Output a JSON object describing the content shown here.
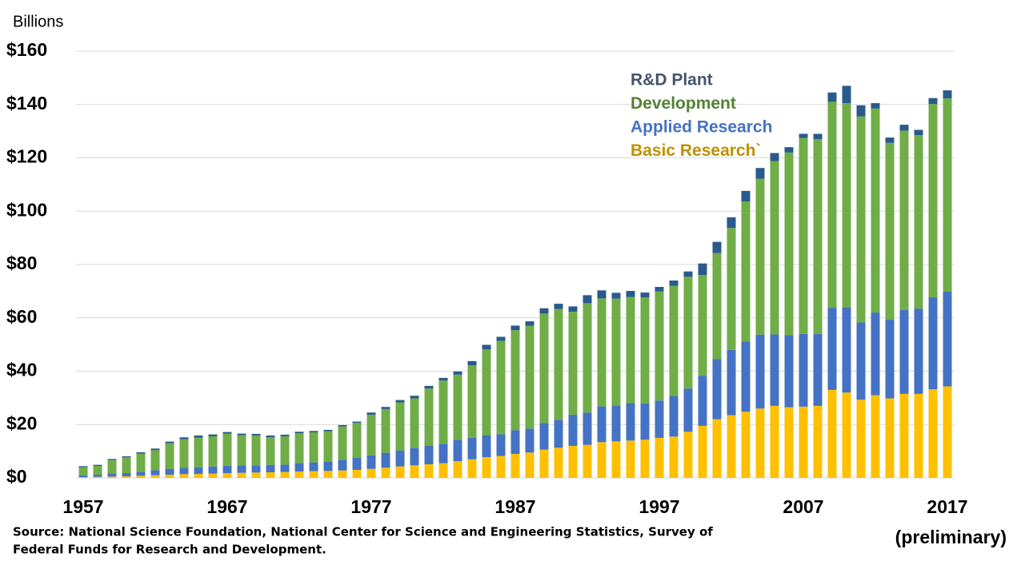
{
  "chart_data": {
    "type": "stacked_bar",
    "y_axis_label": "Billions",
    "annotation": "(preliminary)",
    "source": [
      "Source: National Science Foundation, National Center for Science and Engineering Statistics, Survey of",
      "Federal Funds for Research and Development."
    ],
    "categories": [
      "1957",
      null,
      null,
      null,
      null,
      null,
      null,
      null,
      null,
      null,
      "1967",
      null,
      null,
      null,
      null,
      null,
      null,
      null,
      null,
      null,
      "1977",
      null,
      null,
      null,
      null,
      null,
      null,
      null,
      null,
      null,
      "1987",
      null,
      null,
      null,
      null,
      null,
      null,
      null,
      null,
      null,
      "1997",
      null,
      null,
      null,
      null,
      null,
      null,
      null,
      null,
      null,
      "2007",
      null,
      null,
      null,
      null,
      null,
      null,
      null,
      null,
      null,
      "2017"
    ],
    "series": [
      {
        "name": "Basic Research`",
        "color": "#ffc000",
        "label_color": "#bf9000",
        "values": [
          0.3,
          0.4,
          0.5,
          0.6,
          0.8,
          1.0,
          1.2,
          1.4,
          1.5,
          1.6,
          1.8,
          1.9,
          2.0,
          2.1,
          2.2,
          2.4,
          2.5,
          2.6,
          2.8,
          3.0,
          3.4,
          3.8,
          4.3,
          4.7,
          5.1,
          5.5,
          6.3,
          7.0,
          7.8,
          8.2,
          9.0,
          9.5,
          10.6,
          11.3,
          12.0,
          12.4,
          13.4,
          13.7,
          14.0,
          14.3,
          15.0,
          15.5,
          17.3,
          19.5,
          22.0,
          23.5,
          24.8,
          26.0,
          27.0,
          26.5,
          26.7,
          27.0,
          33.0,
          32.0,
          29.3,
          31.0,
          29.8,
          31.5,
          31.5,
          33.2,
          34.3
        ]
      },
      {
        "name": "Applied Research",
        "color": "#4472c4",
        "label_color": "#4472c4",
        "values": [
          0.7,
          0.8,
          1.0,
          1.2,
          1.5,
          1.9,
          2.2,
          2.4,
          2.5,
          2.7,
          2.8,
          2.8,
          2.7,
          2.8,
          2.8,
          3.2,
          3.3,
          3.6,
          4.0,
          4.6,
          5.0,
          5.6,
          6.0,
          6.5,
          7.0,
          7.3,
          8.0,
          8.0,
          8.2,
          8.2,
          8.9,
          9.0,
          10.0,
          10.5,
          11.7,
          12.1,
          13.4,
          13.5,
          14.1,
          13.6,
          14.0,
          15.2,
          16.2,
          18.8,
          22.6,
          24.5,
          26.4,
          27.7,
          26.8,
          27.0,
          27.3,
          27.0,
          30.8,
          32.0,
          29.0,
          31.0,
          29.5,
          31.5,
          32.0,
          34.5,
          35.5
        ]
      },
      {
        "name": "Development",
        "color": "#70ad47",
        "label_color": "#548235",
        "values": [
          3.0,
          3.3,
          5.2,
          5.9,
          6.8,
          7.5,
          9.6,
          10.7,
          11.1,
          11.3,
          12.0,
          11.3,
          11.2,
          10.4,
          10.6,
          11.1,
          11.3,
          11.3,
          12.5,
          13.0,
          15.3,
          16.4,
          18.0,
          18.6,
          21.4,
          23.7,
          24.4,
          27.2,
          32.2,
          35.0,
          37.5,
          38.5,
          41.0,
          41.5,
          38.6,
          41.0,
          40.5,
          40.0,
          39.7,
          39.8,
          40.9,
          41.3,
          41.9,
          37.8,
          39.7,
          45.7,
          52.4,
          58.5,
          65.0,
          68.5,
          73.5,
          73.0,
          77.2,
          76.5,
          77.2,
          76.5,
          66.3,
          67.2,
          65.0,
          72.5,
          72.5
        ]
      },
      {
        "name": "R&D Plant",
        "color": "#2a5a8c",
        "label_color": "#44546a",
        "values": [
          0.4,
          0.4,
          0.4,
          0.4,
          0.5,
          0.6,
          0.6,
          0.7,
          0.8,
          0.7,
          0.6,
          0.6,
          0.6,
          0.6,
          0.6,
          0.6,
          0.5,
          0.5,
          0.5,
          0.5,
          0.8,
          0.8,
          0.9,
          1.0,
          1.0,
          1.0,
          1.2,
          1.6,
          1.7,
          1.5,
          1.7,
          1.7,
          2.0,
          2.0,
          2.0,
          3.0,
          3.0,
          2.2,
          2.3,
          1.8,
          1.7,
          2.0,
          2.0,
          4.3,
          4.2,
          4.0,
          4.0,
          4.0,
          3.0,
          2.0,
          1.5,
          2.0,
          3.5,
          6.5,
          4.2,
          2.0,
          2.0,
          2.2,
          2.0,
          2.2,
          3.0
        ]
      }
    ],
    "ylim": [
      0,
      160
    ],
    "yticks": [
      {
        "value": 0,
        "label": "$0"
      },
      {
        "value": 20,
        "label": "$20"
      },
      {
        "value": 40,
        "label": "$40"
      },
      {
        "value": 60,
        "label": "$60"
      },
      {
        "value": 80,
        "label": "$80"
      },
      {
        "value": 100,
        "label": "$100"
      },
      {
        "value": 120,
        "label": "$120"
      },
      {
        "value": 140,
        "label": "$140"
      },
      {
        "value": 160,
        "label": "$160"
      }
    ],
    "grid": true,
    "legend_position": "top-right"
  }
}
